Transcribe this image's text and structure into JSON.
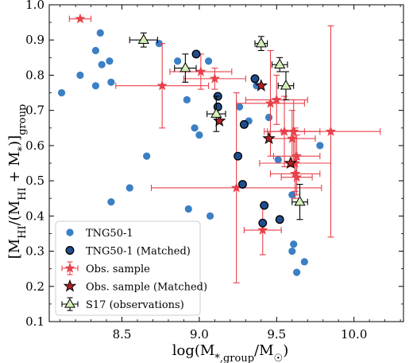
{
  "chart_data": {
    "type": "scatter",
    "xlabel": "log(M*,group/M☉)",
    "ylabel": "[MHI/(MHI + M*)]group",
    "xlim": [
      8.03,
      10.32
    ],
    "ylim": [
      0.1,
      1.0
    ],
    "x_ticks": [
      "8.5",
      "9.0",
      "9.5",
      "10.0"
    ],
    "y_ticks": [
      "0.1",
      "0.2",
      "0.3",
      "0.4",
      "0.5",
      "0.6",
      "0.7",
      "0.8",
      "0.9",
      "1.0"
    ],
    "grid": false,
    "legend_position": "lower-left",
    "series": [
      {
        "name": "TNG50-1",
        "marker": "circle",
        "color": "#3b7fc4",
        "points": [
          [
            8.11,
            0.75
          ],
          [
            8.23,
            0.8
          ],
          [
            8.33,
            0.87
          ],
          [
            8.36,
            0.92
          ],
          [
            8.37,
            0.83
          ],
          [
            8.42,
            0.84
          ],
          [
            8.43,
            0.78
          ],
          [
            8.33,
            0.77
          ],
          [
            8.43,
            0.44
          ],
          [
            8.55,
            0.48
          ],
          [
            8.66,
            0.57
          ],
          [
            8.74,
            0.89
          ],
          [
            8.86,
            0.84
          ],
          [
            8.92,
            0.73
          ],
          [
            8.97,
            0.65
          ],
          [
            9.0,
            0.63
          ],
          [
            9.06,
            0.84
          ],
          [
            8.93,
            0.42
          ],
          [
            9.07,
            0.4
          ],
          [
            9.26,
            0.71
          ],
          [
            9.32,
            0.67
          ],
          [
            9.37,
            0.77
          ],
          [
            9.45,
            0.68
          ],
          [
            9.51,
            0.56
          ],
          [
            9.6,
            0.46
          ],
          [
            9.6,
            0.3
          ],
          [
            9.61,
            0.32
          ],
          [
            9.63,
            0.24
          ],
          [
            9.68,
            0.27
          ],
          [
            9.78,
            0.6
          ]
        ]
      },
      {
        "name": "TNG50-1 (Matched)",
        "marker": "circle-outlined",
        "color": "#1f4e8c",
        "points": [
          [
            8.98,
            0.86
          ],
          [
            9.12,
            0.74
          ],
          [
            9.12,
            0.71
          ],
          [
            9.25,
            0.57
          ],
          [
            9.28,
            0.49
          ],
          [
            9.29,
            0.66
          ],
          [
            9.36,
            0.79
          ],
          [
            9.41,
            0.38
          ],
          [
            9.42,
            0.43
          ],
          [
            9.52,
            0.39
          ]
        ]
      },
      {
        "name": "Obs. sample",
        "marker": "star-errorbar",
        "color": "#e8414a",
        "points": [
          {
            "x": 8.23,
            "y": 0.96,
            "xerr": 0.07,
            "yerr": 0.0
          },
          {
            "x": 8.76,
            "y": 0.77,
            "xerr": 0.3,
            "yerr": 0.12
          },
          {
            "x": 9.01,
            "y": 0.81,
            "xerr": 0.2,
            "yerr": 0.05
          },
          {
            "x": 9.1,
            "y": 0.79,
            "xerr": 0.2,
            "yerr": 0.03
          },
          {
            "x": 9.24,
            "y": 0.48,
            "xerr": 0.55,
            "yerr": 0.27
          },
          {
            "x": 9.41,
            "y": 0.36,
            "xerr": 0.12,
            "yerr": 0.07
          },
          {
            "x": 9.46,
            "y": 0.72,
            "xerr": 0.22,
            "yerr": 0.15
          },
          {
            "x": 9.5,
            "y": 0.73,
            "xerr": 0.2,
            "yerr": 0.07
          },
          {
            "x": 9.55,
            "y": 0.64,
            "xerr": 0.13,
            "yerr": 0.1
          },
          {
            "x": 9.6,
            "y": 0.62,
            "xerr": 0.15,
            "yerr": 0.08
          },
          {
            "x": 9.61,
            "y": 0.64,
            "xerr": 0.17,
            "yerr": 0.09
          },
          {
            "x": 9.62,
            "y": 0.55,
            "xerr": 0.23,
            "yerr": 0.1
          },
          {
            "x": 9.62,
            "y": 0.52,
            "xerr": 0.16,
            "yerr": 0.05
          },
          {
            "x": 9.63,
            "y": 0.51,
            "xerr": 0.1,
            "yerr": 0.05
          },
          {
            "x": 9.63,
            "y": 0.57,
            "xerr": 0.15,
            "yerr": 0.06
          },
          {
            "x": 9.85,
            "y": 0.64,
            "xerr": 0.32,
            "yerr": 0.3
          }
        ]
      },
      {
        "name": "Obs. sample (Matched)",
        "marker": "star-filled",
        "color": "#b22026",
        "points": [
          [
            9.13,
            0.67
          ],
          [
            9.4,
            0.77
          ],
          [
            9.45,
            0.62
          ],
          [
            9.59,
            0.55
          ]
        ]
      },
      {
        "name": "S17 (observations)",
        "marker": "triangle-errorbar",
        "color": "#d4f0b8",
        "points": [
          {
            "x": 8.64,
            "y": 0.9,
            "xerr": 0.09,
            "yerr": 0.02
          },
          {
            "x": 8.91,
            "y": 0.82,
            "xerr": 0.07,
            "yerr": 0.04
          },
          {
            "x": 9.11,
            "y": 0.69,
            "xerr": 0.06,
            "yerr": 0.05
          },
          {
            "x": 9.4,
            "y": 0.89,
            "xerr": 0.04,
            "yerr": 0.02
          },
          {
            "x": 9.52,
            "y": 0.83,
            "xerr": 0.05,
            "yerr": 0.02
          },
          {
            "x": 9.56,
            "y": 0.77,
            "xerr": 0.05,
            "yerr": 0.04
          },
          {
            "x": 9.65,
            "y": 0.44,
            "xerr": 0.05,
            "yerr": 0.05
          }
        ]
      }
    ]
  }
}
